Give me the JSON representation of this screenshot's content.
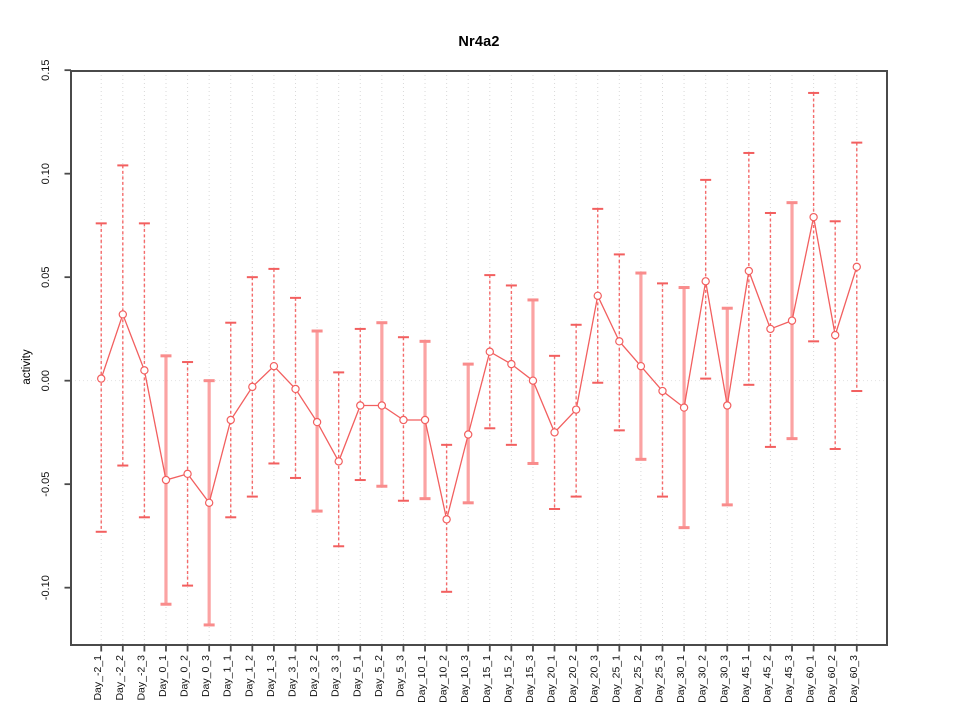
{
  "title": "Nr4a2",
  "ylabel": "activity",
  "colors": {
    "marker": "#f25f5f",
    "series_line": "#f25f5f",
    "bar_thin": "#f46a6a",
    "bar_wide": "#fba3a3",
    "cap_thin": "#f25f5f",
    "cap_wide": "#f98c8c",
    "gridline": "#d9d9d9",
    "zero_line": "#e2e2e2",
    "axis": "#4a4a4a",
    "tick_text": "#111111"
  },
  "chart_data": {
    "type": "line",
    "title": "Nr4a2",
    "xlabel": "",
    "ylabel": "activity",
    "ylim": [
      -0.128,
      0.15
    ],
    "yticks": [
      0.15,
      0.1,
      0.05,
      0.0,
      -0.05,
      -0.1
    ],
    "ytick_labels": [
      "0.15",
      "0.10",
      "0.05",
      "0.00",
      "-0.05",
      "-0.10"
    ],
    "grid": "vertical dotted gridline per category + dotted horizontal line at 0",
    "legend_position": "none",
    "marker": "open-circle",
    "error_bars": true,
    "categories": [
      "Day_-2_1",
      "Day_-2_2",
      "Day_-2_3",
      "Day_0_1",
      "Day_0_2",
      "Day_0_3",
      "Day_1_1",
      "Day_1_2",
      "Day_1_3",
      "Day_3_1",
      "Day_3_2",
      "Day_3_3",
      "Day_5_1",
      "Day_5_2",
      "Day_5_3",
      "Day_10_1",
      "Day_10_2",
      "Day_10_3",
      "Day_15_1",
      "Day_15_2",
      "Day_15_3",
      "Day_20_1",
      "Day_20_2",
      "Day_20_3",
      "Day_25_1",
      "Day_25_2",
      "Day_25_3",
      "Day_30_1",
      "Day_30_2",
      "Day_30_3",
      "Day_45_1",
      "Day_45_2",
      "Day_45_3",
      "Day_60_1",
      "Day_60_2",
      "Day_60_3"
    ],
    "series": [
      {
        "name": "mean",
        "values": [
          0.001,
          0.032,
          0.005,
          -0.048,
          -0.045,
          -0.059,
          -0.019,
          -0.003,
          0.007,
          -0.004,
          -0.02,
          -0.039,
          -0.012,
          -0.012,
          -0.019,
          -0.019,
          -0.067,
          -0.026,
          0.014,
          0.008,
          0.0,
          -0.025,
          -0.014,
          0.041,
          0.019,
          0.007,
          -0.005,
          -0.013,
          0.048,
          -0.012,
          0.053,
          0.025,
          0.029,
          0.079,
          0.022,
          0.055
        ]
      },
      {
        "name": "upper",
        "values": [
          0.076,
          0.104,
          0.076,
          0.012,
          0.009,
          0.0,
          0.028,
          0.05,
          0.054,
          0.04,
          0.024,
          0.004,
          0.025,
          0.028,
          0.021,
          0.019,
          -0.031,
          0.008,
          0.051,
          0.046,
          0.039,
          0.012,
          0.027,
          0.083,
          0.061,
          0.052,
          0.047,
          0.045,
          0.097,
          0.035,
          0.11,
          0.081,
          0.086,
          0.139,
          0.077,
          0.115
        ]
      },
      {
        "name": "lower",
        "values": [
          -0.073,
          -0.041,
          -0.066,
          -0.108,
          -0.099,
          -0.118,
          -0.066,
          -0.056,
          -0.04,
          -0.047,
          -0.063,
          -0.08,
          -0.048,
          -0.051,
          -0.058,
          -0.057,
          -0.102,
          -0.059,
          -0.023,
          -0.031,
          -0.04,
          -0.062,
          -0.056,
          -0.001,
          -0.024,
          -0.038,
          -0.056,
          -0.071,
          0.001,
          -0.06,
          -0.002,
          -0.032,
          -0.028,
          0.019,
          -0.033,
          -0.005
        ]
      }
    ],
    "wide_bar_flags": [
      false,
      false,
      false,
      true,
      false,
      true,
      false,
      false,
      false,
      false,
      true,
      false,
      false,
      true,
      false,
      true,
      false,
      true,
      false,
      false,
      true,
      false,
      false,
      false,
      false,
      true,
      false,
      true,
      false,
      true,
      false,
      false,
      true,
      false,
      false,
      false
    ]
  }
}
